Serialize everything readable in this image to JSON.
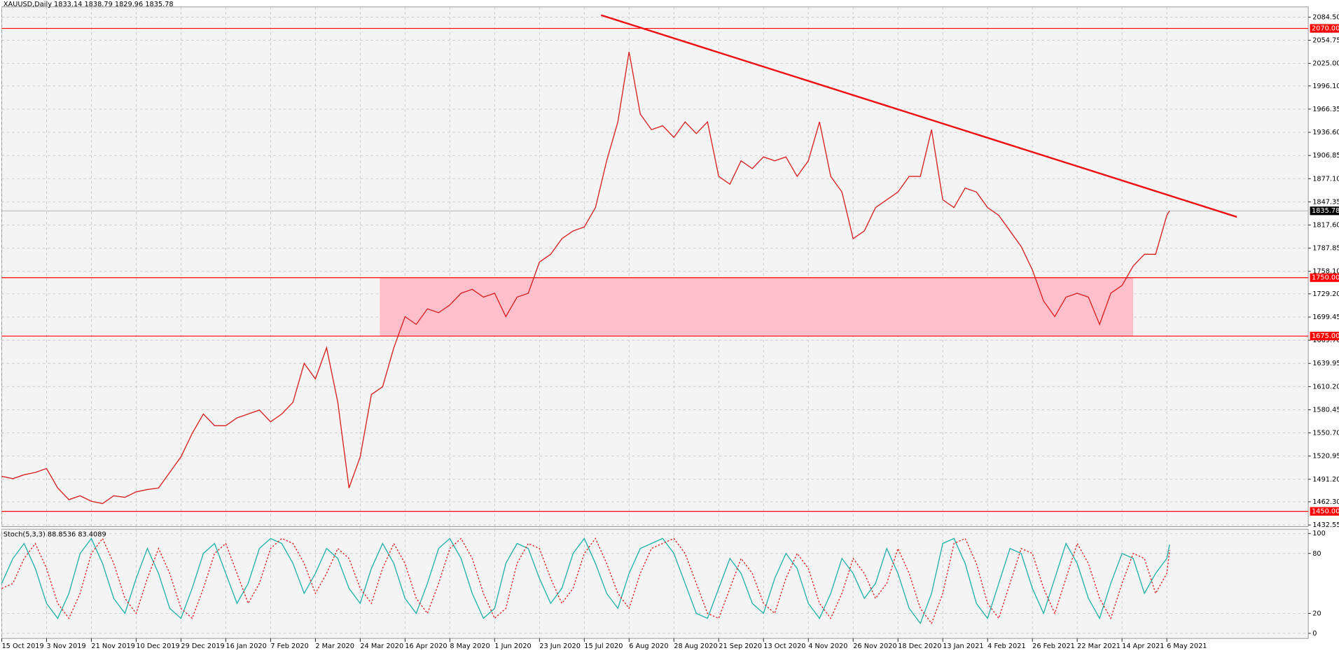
{
  "chart_data": [
    {
      "type": "line",
      "title": "XAUUSD,Daily  1833.14 1838.79 1829.96 1835.78",
      "x": [
        0,
        4,
        8,
        12,
        16,
        20,
        24,
        28,
        32,
        36,
        40,
        44,
        48,
        52,
        56,
        60,
        64,
        68,
        72,
        76,
        80,
        84,
        88,
        92,
        96,
        100,
        104,
        108,
        112,
        116,
        120,
        124,
        128,
        132,
        136,
        140,
        144,
        148,
        152,
        156,
        160,
        164,
        168,
        172,
        176,
        180,
        184,
        188,
        192,
        196,
        200,
        204,
        208,
        212,
        216,
        220,
        224,
        228,
        232,
        236,
        240,
        244,
        248,
        252,
        256,
        260,
        264,
        268,
        272,
        276,
        280,
        284,
        288,
        292,
        296,
        300,
        304,
        308,
        312,
        316,
        320,
        324,
        328,
        332,
        336,
        340,
        344,
        348,
        352,
        356,
        360,
        364,
        368,
        372,
        376,
        380,
        384,
        388,
        392,
        396,
        400,
        404,
        408,
        412,
        416,
        417
      ],
      "series": [
        {
          "name": "XAUUSD",
          "color": "#d81e1e",
          "values": [
            1495,
            1492,
            1497,
            1500,
            1505,
            1480,
            1465,
            1470,
            1463,
            1460,
            1470,
            1468,
            1475,
            1478,
            1480,
            1500,
            1520,
            1550,
            1575,
            1560,
            1560,
            1570,
            1575,
            1580,
            1565,
            1575,
            1590,
            1640,
            1620,
            1660,
            1590,
            1480,
            1520,
            1600,
            1610,
            1660,
            1700,
            1690,
            1710,
            1705,
            1715,
            1730,
            1735,
            1725,
            1730,
            1700,
            1725,
            1730,
            1770,
            1780,
            1800,
            1810,
            1815,
            1840,
            1900,
            1950,
            2040,
            1960,
            1940,
            1945,
            1930,
            1950,
            1935,
            1950,
            1880,
            1870,
            1900,
            1890,
            1905,
            1900,
            1905,
            1880,
            1900,
            1950,
            1880,
            1860,
            1800,
            1810,
            1840,
            1850,
            1860,
            1880,
            1880,
            1940,
            1850,
            1840,
            1865,
            1860,
            1840,
            1830,
            1810,
            1790,
            1760,
            1720,
            1700,
            1725,
            1730,
            1725,
            1690,
            1730,
            1740,
            1765,
            1780,
            1780,
            1830,
            1835.78
          ]
        }
      ],
      "xlim": [
        0,
        466.5
      ],
      "xticks": [
        {
          "value": 0,
          "label": "15 Oct 2019"
        },
        {
          "value": 16,
          "label": "3 Nov 2019"
        },
        {
          "value": 32,
          "label": "21 Nov 2019"
        },
        {
          "value": 48,
          "label": "10 Dec 2019"
        },
        {
          "value": 64,
          "label": "29 Dec 2019"
        },
        {
          "value": 80,
          "label": "16 Jan 2020"
        },
        {
          "value": 96,
          "label": "7 Feb 2020"
        },
        {
          "value": 112,
          "label": "2 Mar 2020"
        },
        {
          "value": 128,
          "label": "24 Mar 2020"
        },
        {
          "value": 144,
          "label": "16 Apr 2020"
        },
        {
          "value": 160,
          "label": "8 May 2020"
        },
        {
          "value": 176,
          "label": "1 Jun 2020"
        },
        {
          "value": 192,
          "label": "23 Jun 2020"
        },
        {
          "value": 208,
          "label": "15 Jul 2020"
        },
        {
          "value": 224,
          "label": "6 Aug 2020"
        },
        {
          "value": 240,
          "label": "28 Aug 2020"
        },
        {
          "value": 256,
          "label": "21 Sep 2020"
        },
        {
          "value": 272,
          "label": "13 Oct 2020"
        },
        {
          "value": 288,
          "label": "4 Nov 2020"
        },
        {
          "value": 304,
          "label": "26 Nov 2020"
        },
        {
          "value": 320,
          "label": "18 Dec 2020"
        },
        {
          "value": 336,
          "label": "13 Jan 2021"
        },
        {
          "value": 352,
          "label": "4 Feb 2021"
        },
        {
          "value": 368,
          "label": "26 Feb 2021"
        },
        {
          "value": 384,
          "label": "22 Mar 2021"
        },
        {
          "value": 400,
          "label": "14 Apr 2021"
        },
        {
          "value": 416,
          "label": "6 May 2021"
        }
      ],
      "ylim": [
        1430.4,
        2097.6
      ],
      "yticks": [
        {
          "value": 2084.5,
          "label": "2084.50"
        },
        {
          "value": 2054.75,
          "label": "2054.75"
        },
        {
          "value": 2025,
          "label": "2025.00"
        },
        {
          "value": 1996.1,
          "label": "1996.10"
        },
        {
          "value": 1966.35,
          "label": "1966.35"
        },
        {
          "value": 1936.6,
          "label": "1936.60"
        },
        {
          "value": 1906.85,
          "label": "1906.85"
        },
        {
          "value": 1877.1,
          "label": "1877.10"
        },
        {
          "value": 1847.35,
          "label": "1847.35"
        },
        {
          "value": 1817.6,
          "label": "1817.60"
        },
        {
          "value": 1787.85,
          "label": "1787.85"
        },
        {
          "value": 1758.1,
          "label": "1758.10"
        },
        {
          "value": 1729.2,
          "label": "1729.20"
        },
        {
          "value": 1699.45,
          "label": "1699.45"
        },
        {
          "value": 1669.7,
          "label": "1669.70"
        },
        {
          "value": 1639.95,
          "label": "1639.95"
        },
        {
          "value": 1610.2,
          "label": "1610.20"
        },
        {
          "value": 1580.45,
          "label": "1580.45"
        },
        {
          "value": 1550.7,
          "label": "1550.70"
        },
        {
          "value": 1520.95,
          "label": "1520.95"
        },
        {
          "value": 1491.2,
          "label": "1491.20"
        },
        {
          "value": 1462.3,
          "label": "1462.30"
        },
        {
          "value": 1432.55,
          "label": "1432.55"
        }
      ],
      "grid": true,
      "levels": [
        {
          "value": 2070,
          "label": "2070.00"
        },
        {
          "value": 1750,
          "label": "1750.00"
        },
        {
          "value": 1675,
          "label": "1675.00"
        },
        {
          "value": 1450,
          "label": "1450.00"
        }
      ],
      "level_color": "#ff0000",
      "current_price": {
        "value": 1835.78,
        "label": "1835.78"
      },
      "trendline": {
        "x": [
          214,
          441
        ],
        "values": [
          2087,
          1828
        ],
        "color": "#ee1111"
      },
      "zone": {
        "x": [
          135,
          404
        ],
        "values": [
          1675,
          1750
        ],
        "color": "#ffc0cb"
      }
    },
    {
      "type": "line",
      "title": "Stoch(5,3,3) 88.8536 83.4089",
      "x": [
        0,
        4,
        8,
        12,
        16,
        20,
        24,
        28,
        32,
        36,
        40,
        44,
        48,
        52,
        56,
        60,
        64,
        68,
        72,
        76,
        80,
        84,
        88,
        92,
        96,
        100,
        104,
        108,
        112,
        116,
        120,
        124,
        128,
        132,
        136,
        140,
        144,
        148,
        152,
        156,
        160,
        164,
        168,
        172,
        176,
        180,
        184,
        188,
        192,
        196,
        200,
        204,
        208,
        212,
        216,
        220,
        224,
        228,
        232,
        236,
        240,
        244,
        248,
        252,
        256,
        260,
        264,
        268,
        272,
        276,
        280,
        284,
        288,
        292,
        296,
        300,
        304,
        308,
        312,
        316,
        320,
        324,
        328,
        332,
        336,
        340,
        344,
        348,
        352,
        356,
        360,
        364,
        368,
        372,
        376,
        380,
        384,
        388,
        392,
        396,
        400,
        404,
        408,
        412,
        416,
        417
      ],
      "series": [
        {
          "name": "Main",
          "color": "#20b2aa",
          "values": [
            50,
            75,
            90,
            65,
            30,
            15,
            40,
            80,
            95,
            70,
            35,
            20,
            55,
            85,
            60,
            25,
            15,
            45,
            80,
            90,
            60,
            30,
            50,
            85,
            95,
            90,
            70,
            40,
            60,
            85,
            75,
            45,
            30,
            65,
            90,
            70,
            35,
            20,
            50,
            85,
            95,
            75,
            40,
            15,
            25,
            70,
            90,
            85,
            55,
            30,
            45,
            80,
            95,
            70,
            40,
            25,
            60,
            85,
            90,
            95,
            80,
            50,
            20,
            15,
            45,
            75,
            60,
            30,
            20,
            55,
            80,
            65,
            30,
            15,
            40,
            75,
            60,
            35,
            50,
            85,
            60,
            25,
            10,
            40,
            90,
            95,
            70,
            30,
            15,
            50,
            85,
            80,
            45,
            20,
            55,
            90,
            70,
            35,
            15,
            50,
            80,
            75,
            40,
            60,
            75,
            88.85
          ]
        },
        {
          "name": "Signal",
          "color": "#e02020",
          "dashed": true,
          "values": [
            45,
            50,
            75,
            90,
            65,
            30,
            15,
            40,
            80,
            95,
            70,
            35,
            20,
            55,
            85,
            60,
            25,
            15,
            45,
            80,
            90,
            60,
            30,
            50,
            85,
            95,
            90,
            70,
            40,
            60,
            85,
            75,
            45,
            30,
            65,
            90,
            70,
            35,
            20,
            50,
            85,
            95,
            75,
            40,
            15,
            25,
            70,
            90,
            85,
            55,
            30,
            45,
            80,
            95,
            70,
            40,
            25,
            60,
            85,
            90,
            95,
            80,
            50,
            20,
            15,
            45,
            75,
            60,
            30,
            20,
            55,
            80,
            65,
            30,
            15,
            40,
            75,
            60,
            35,
            50,
            85,
            60,
            25,
            10,
            40,
            90,
            95,
            70,
            30,
            15,
            50,
            85,
            80,
            45,
            20,
            55,
            90,
            70,
            35,
            15,
            50,
            80,
            75,
            40,
            60,
            83.41
          ]
        }
      ],
      "xlim": [
        0,
        466.5
      ],
      "ylim": [
        -5.1,
        104.3
      ],
      "yticks": [
        100,
        80,
        20,
        0
      ],
      "grid": true
    }
  ]
}
